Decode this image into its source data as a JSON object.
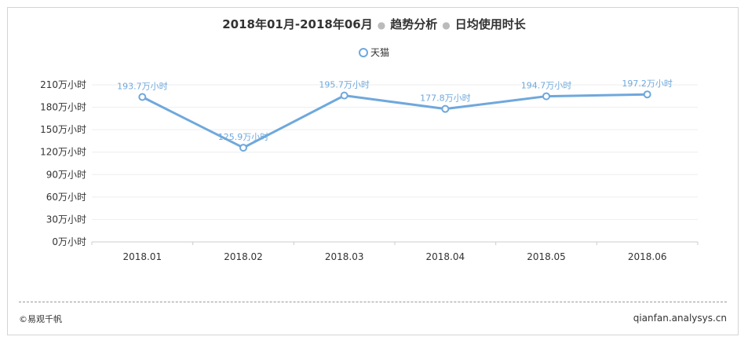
{
  "title": {
    "main": "2018年01月-2018年06月",
    "part2": "趋势分析",
    "part3": "日均使用时长"
  },
  "colors": {
    "series": "#6fa8dc",
    "label": "#6fa8dc",
    "axis_text": "#333333",
    "grid": "#eeeeee"
  },
  "chart_data": {
    "type": "line",
    "title": "2018年01月-2018年06月 · 趋势分析 · 日均使用时长",
    "categories": [
      "2018.01",
      "2018.02",
      "2018.03",
      "2018.04",
      "2018.05",
      "2018.06"
    ],
    "series": [
      {
        "name": "天猫",
        "values": [
          193.7,
          125.9,
          195.7,
          177.8,
          194.7,
          197.2
        ],
        "labels": [
          "193.7万小时",
          "125.9万小时",
          "195.7万小时",
          "177.8万小时",
          "194.7万小时",
          "197.2万小时"
        ]
      }
    ],
    "ylim": [
      0,
      210
    ],
    "yticks": [
      0,
      30,
      60,
      90,
      120,
      150,
      180,
      210
    ],
    "ytick_labels": [
      "0万小时",
      "30万小时",
      "60万小时",
      "90万小时",
      "120万小时",
      "150万小时",
      "180万小时",
      "210万小时"
    ],
    "grid": true,
    "legend_position": "top-center"
  },
  "footer": {
    "left": "©易观千帆",
    "right": "qianfan.analysys.cn"
  }
}
